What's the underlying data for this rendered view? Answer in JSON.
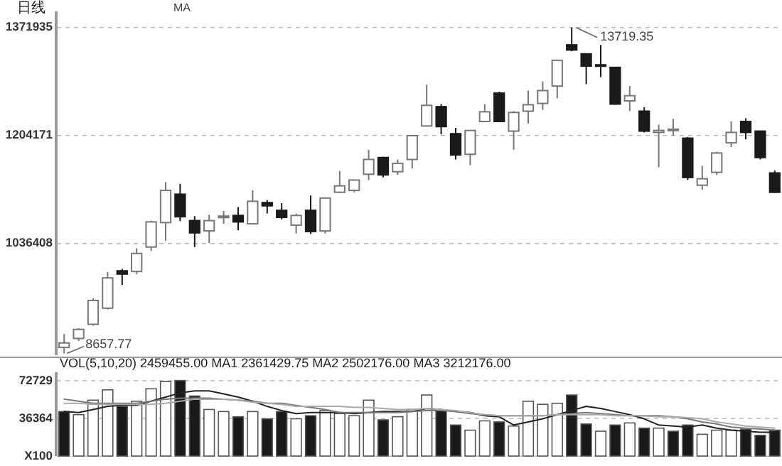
{
  "chart_data": [
    {
      "type": "candlestick",
      "title": "日线",
      "subtitle": "MA",
      "grid": "y",
      "categories": [
        null,
        null,
        null,
        null,
        null,
        null,
        null,
        null,
        null,
        null,
        null,
        null,
        null,
        null,
        null,
        null,
        null,
        null,
        null,
        null,
        null,
        null,
        null,
        null,
        null,
        null,
        null,
        null,
        null,
        null,
        null,
        null,
        null,
        null,
        null,
        null,
        null,
        null,
        null,
        null,
        null,
        null,
        null,
        null,
        null,
        null,
        null,
        null,
        null,
        null
      ],
      "ohlc": [
        [
          875000,
          896000,
          865777,
          882000
        ],
        [
          889000,
          905000,
          885000,
          903000
        ],
        [
          911000,
          951000,
          909000,
          948000
        ],
        [
          936000,
          992000,
          934000,
          983000
        ],
        [
          994000,
          997000,
          972000,
          989000
        ],
        [
          993000,
          1029000,
          989000,
          1021000
        ],
        [
          1031000,
          1072000,
          1025000,
          1070000
        ],
        [
          1069000,
          1132000,
          1041000,
          1119000
        ],
        [
          1113000,
          1129000,
          1071000,
          1078000
        ],
        [
          1072000,
          1079000,
          1031000,
          1053000
        ],
        [
          1056000,
          1081000,
          1037000,
          1072000
        ],
        [
          1077000,
          1087000,
          1067000,
          1079000
        ],
        [
          1080000,
          1093000,
          1057000,
          1070000
        ],
        [
          1067000,
          1119000,
          1067000,
          1102000
        ],
        [
          1100000,
          1104000,
          1083000,
          1095000
        ],
        [
          1088000,
          1099000,
          1074000,
          1077000
        ],
        [
          1065000,
          1083000,
          1052000,
          1080000
        ],
        [
          1088000,
          1111000,
          1051000,
          1055000
        ],
        [
          1056000,
          1107000,
          1052000,
          1107000
        ],
        [
          1116000,
          1149000,
          1115000,
          1126000
        ],
        [
          1119000,
          1135000,
          1116000,
          1135000
        ],
        [
          1144000,
          1182000,
          1135000,
          1167000
        ],
        [
          1170000,
          1171000,
          1139000,
          1143000
        ],
        [
          1148000,
          1167000,
          1143000,
          1161000
        ],
        [
          1167000,
          1204000,
          1153000,
          1204000
        ],
        [
          1219000,
          1283000,
          1219000,
          1251000
        ],
        [
          1249000,
          1253000,
          1206000,
          1218000
        ],
        [
          1207000,
          1216000,
          1167000,
          1174000
        ],
        [
          1175000,
          1212000,
          1158000,
          1212000
        ],
        [
          1226000,
          1253000,
          1226000,
          1241000
        ],
        [
          1270000,
          1272000,
          1226000,
          1226000
        ],
        [
          1211000,
          1242000,
          1182000,
          1240000
        ],
        [
          1242000,
          1274000,
          1223000,
          1252000
        ],
        [
          1254000,
          1288000,
          1244000,
          1274000
        ],
        [
          1281000,
          1322000,
          1262000,
          1321000
        ],
        [
          1345000,
          1371935,
          1335000,
          1337000
        ],
        [
          1331000,
          1331000,
          1284000,
          1312000
        ],
        [
          1314000,
          1345000,
          1295000,
          1313000
        ],
        [
          1310000,
          1311000,
          1252000,
          1253000
        ],
        [
          1258000,
          1281000,
          1242000,
          1266000
        ],
        [
          1242000,
          1248000,
          1209000,
          1211000
        ],
        [
          1209000,
          1221000,
          1155000,
          1212000
        ],
        [
          1214000,
          1230000,
          1204000,
          1214000
        ],
        [
          1200000,
          1202000,
          1135000,
          1139000
        ],
        [
          1127000,
          1157000,
          1120000,
          1137000
        ],
        [
          1147000,
          1179000,
          1143000,
          1177000
        ],
        [
          1193000,
          1226000,
          1186000,
          1209000
        ],
        [
          1226000,
          1231000,
          1198000,
          1209000
        ],
        [
          1211000,
          1211000,
          1167000,
          1170000
        ],
        [
          1146000,
          1150000,
          1115000,
          1116000
        ]
      ],
      "ylim": [
        863000,
        1397000
      ],
      "yticks": [
        1371935,
        1204171,
        1036408
      ],
      "annotations": [
        "13719.35",
        "8657.77"
      ]
    },
    {
      "type": "bar",
      "title": "VOL(5,10,20)  2459455.00 MA1 2361429.75 MA2 2502176.00 MA3 3212176.00",
      "grid": "y",
      "categories": [
        null,
        null,
        null,
        null,
        null,
        null,
        null,
        null,
        null,
        null,
        null,
        null,
        null,
        null,
        null,
        null,
        null,
        null,
        null,
        null,
        null,
        null,
        null,
        null,
        null,
        null,
        null,
        null,
        null,
        null,
        null,
        null,
        null,
        null,
        null,
        null,
        null,
        null,
        null,
        null,
        null,
        null,
        null,
        null,
        null,
        null,
        null,
        null,
        null,
        null
      ],
      "series": [
        {
          "type": "bar",
          "colors": [
            "#1a1a1a",
            "#ffffff",
            "#ffffff",
            "#ffffff",
            "#1a1a1a",
            "#ffffff",
            "#ffffff",
            "#ffffff",
            "#1a1a1a",
            "#1a1a1a",
            "#ffffff",
            "#ffffff",
            "#1a1a1a",
            "#ffffff",
            "#1a1a1a",
            "#1a1a1a",
            "#ffffff",
            "#1a1a1a",
            "#ffffff",
            "#ffffff",
            "#ffffff",
            "#ffffff",
            "#1a1a1a",
            "#ffffff",
            "#ffffff",
            "#ffffff",
            "#1a1a1a",
            "#1a1a1a",
            "#ffffff",
            "#ffffff",
            "#1a1a1a",
            "#ffffff",
            "#ffffff",
            "#ffffff",
            "#ffffff",
            "#1a1a1a",
            "#1a1a1a",
            "#ffffff",
            "#1a1a1a",
            "#ffffff",
            "#1a1a1a",
            "#ffffff",
            "#1a1a1a",
            "#1a1a1a",
            "#ffffff",
            "#ffffff",
            "#ffffff",
            "#1a1a1a",
            "#1a1a1a",
            "#1a1a1a"
          ],
          "values": [
            43000,
            40000,
            54000,
            64000,
            48000,
            53000,
            65000,
            72000,
            73000,
            58000,
            45000,
            43000,
            38000,
            43000,
            36000,
            43000,
            36000,
            39000,
            44000,
            41000,
            39000,
            54000,
            35000,
            38000,
            45000,
            59000,
            44000,
            30000,
            25000,
            34000,
            33000,
            29000,
            53000,
            50000,
            51000,
            59000,
            31000,
            24000,
            30000,
            32000,
            27000,
            27000,
            24000,
            30000,
            21000,
            25000,
            25000,
            26000,
            20000,
            25000
          ]
        },
        {
          "type": "line",
          "color": "#222222",
          "values": [
            43000,
            42000,
            45000,
            48000,
            49000,
            49000,
            53000,
            57000,
            61000,
            63000,
            63000,
            60000,
            57000,
            53000,
            48000,
            44000,
            41000,
            42000,
            42000,
            42000,
            41000,
            42000,
            43000,
            43000,
            43000,
            46000,
            45000,
            43000,
            42000,
            39000,
            38000,
            30000,
            33000,
            36000,
            40000,
            44000,
            48000,
            46000,
            43000,
            40000,
            36000,
            30000,
            29000,
            28000,
            30000,
            27000,
            25000,
            24000,
            23000,
            23000
          ]
        },
        {
          "type": "line",
          "color": "#777777",
          "values": [
            55000,
            53000,
            51000,
            51000,
            51000,
            51000,
            53000,
            55000,
            56000,
            56000,
            56000,
            55000,
            54000,
            53000,
            51000,
            51000,
            49000,
            47000,
            45000,
            42000,
            42000,
            42000,
            42000,
            42000,
            43000,
            44000,
            44000,
            43000,
            41000,
            40000,
            39000,
            39000,
            39000,
            39000,
            40000,
            41000,
            42000,
            41000,
            40000,
            39000,
            39000,
            39000,
            38000,
            36000,
            33000,
            31000,
            28000,
            27000,
            26000,
            25000
          ]
        },
        {
          "type": "line",
          "color": "#aaaaaa",
          "values": [
            51000,
            51000,
            50000,
            50000,
            50000,
            50000,
            50000,
            51000,
            53000,
            55000,
            55000,
            55000,
            54000,
            52000,
            51000,
            50000,
            48000,
            48000,
            48000,
            48000,
            47000,
            47000,
            46000,
            45000,
            45000,
            46000,
            45000,
            44000,
            42000,
            40000,
            39000,
            39000,
            39000,
            39000,
            40000,
            40000,
            40000,
            40000,
            39000,
            39000,
            39000,
            38000,
            38000,
            37000,
            36000,
            33000,
            31000,
            29000,
            28000,
            27000
          ]
        }
      ],
      "ylim": [
        0,
        81000
      ],
      "yticks": [
        {
          "value": 0,
          "label": "X100"
        },
        72729,
        36364
      ]
    }
  ]
}
